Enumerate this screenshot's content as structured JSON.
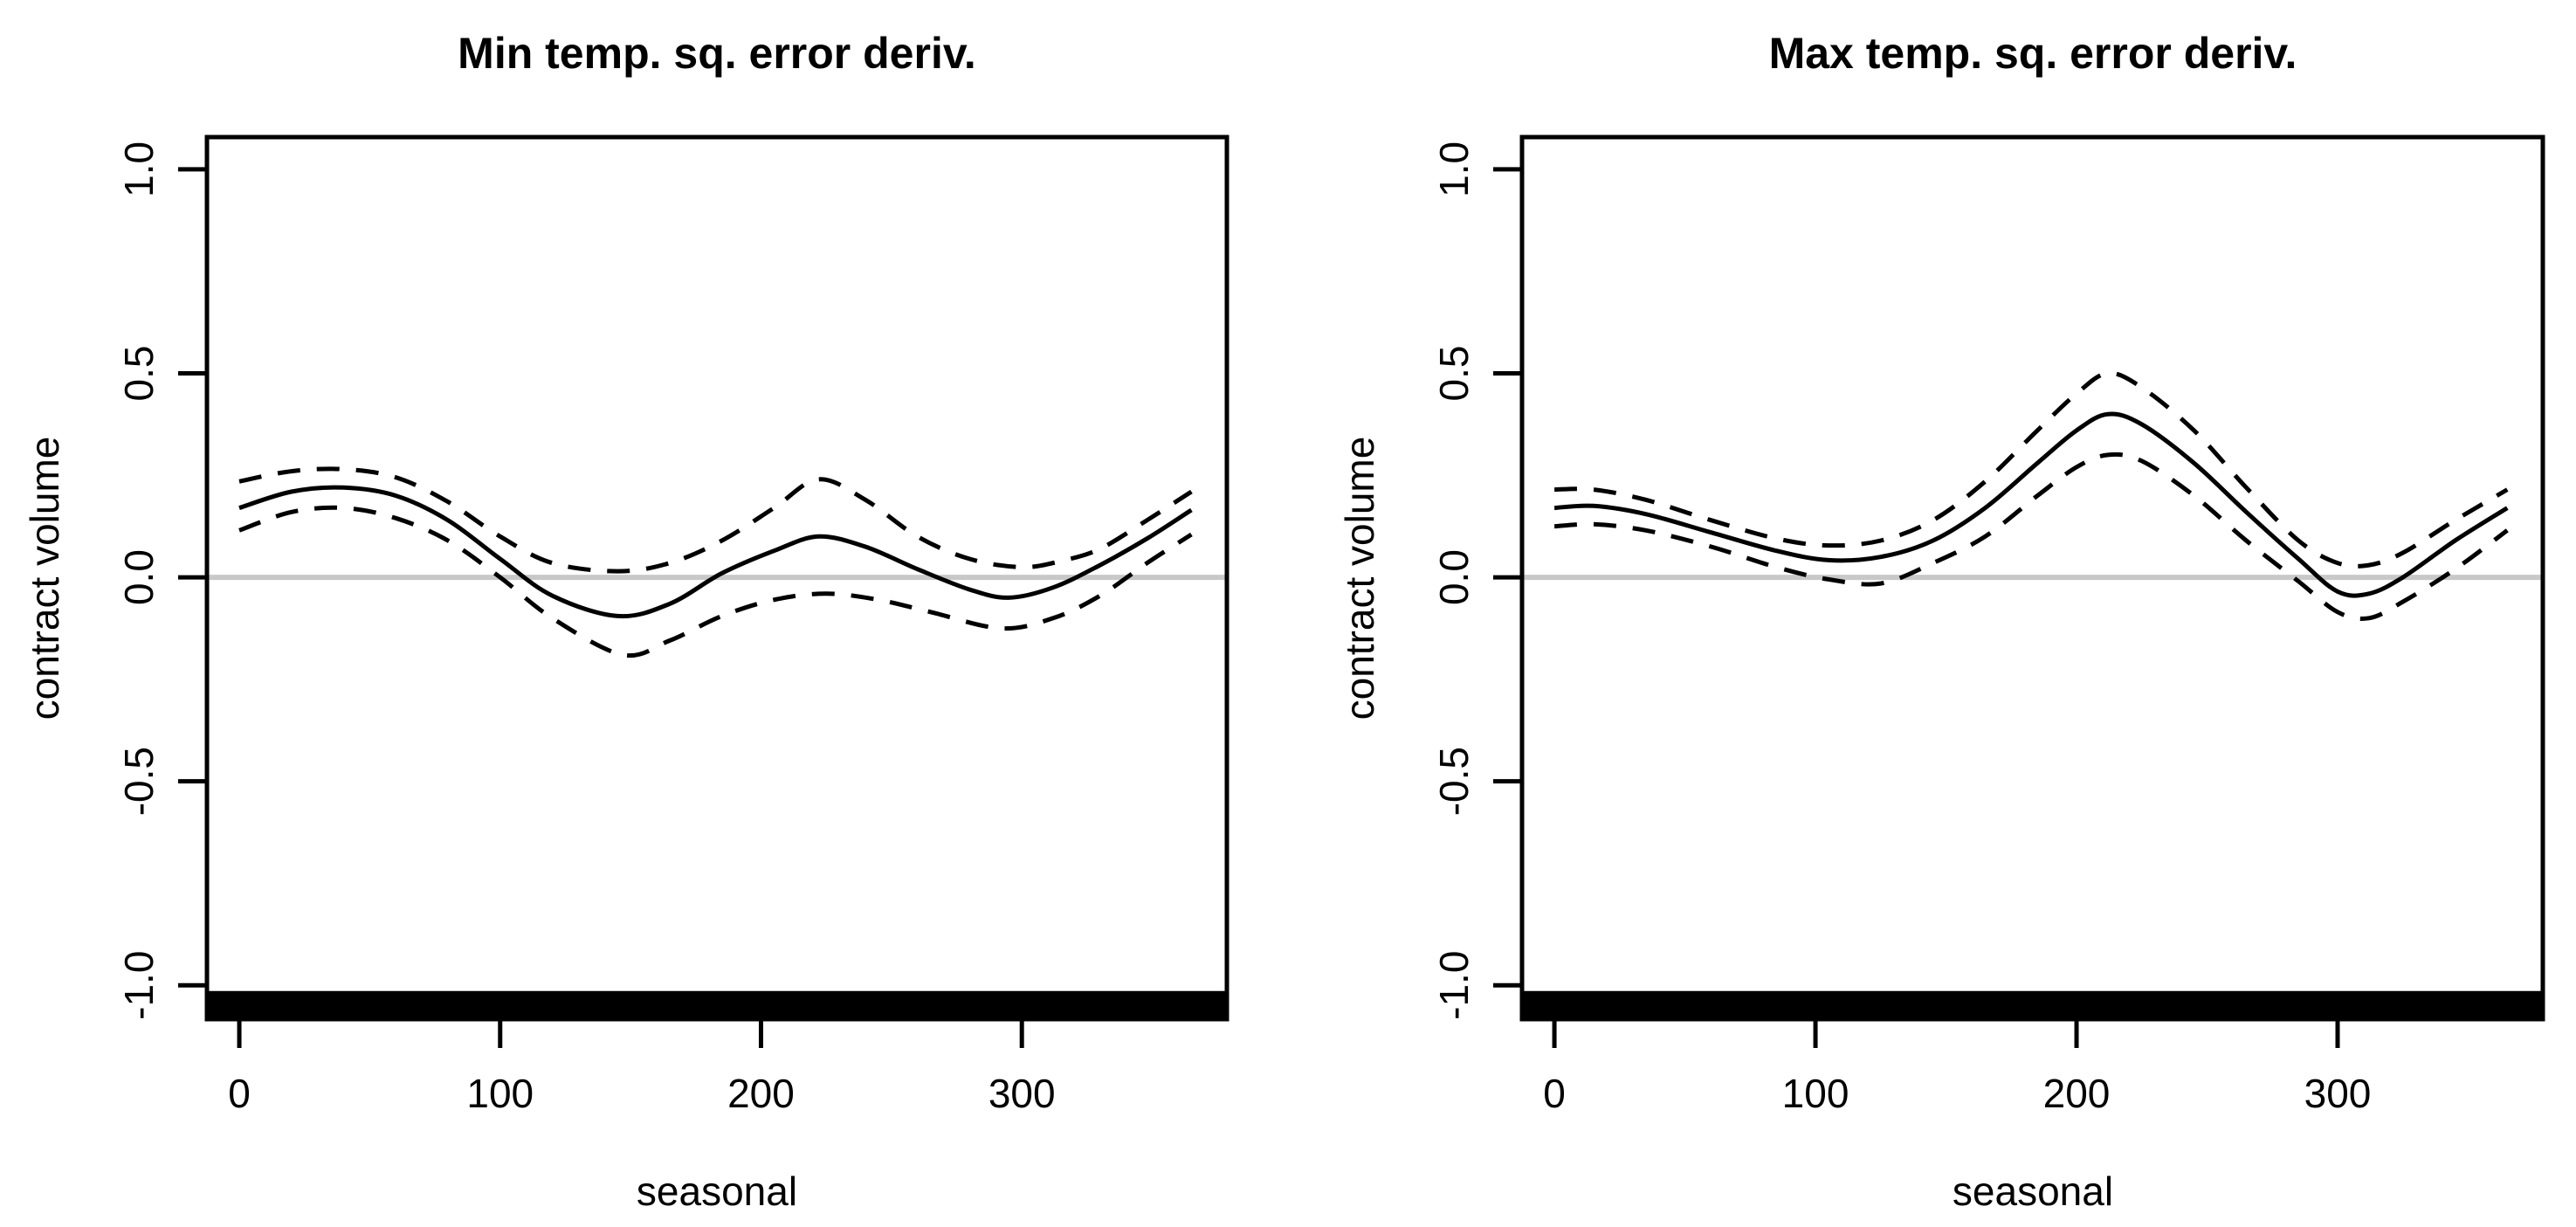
{
  "figure": {
    "background": "#ffffff",
    "line_color": "#000000",
    "zero_line_color": "#c8c8c8",
    "axis_color": "#000000",
    "rug_color": "#000000"
  },
  "chart_data": [
    {
      "type": "line",
      "title": "Min temp. sq. error deriv.",
      "xlabel": "seasonal",
      "ylabel": "contract volume",
      "xlim": [
        -12.4,
        378.6
      ],
      "ylim": [
        -1.083,
        1.079
      ],
      "x_ticks": [
        0,
        100,
        200,
        300
      ],
      "x_tick_labels": [
        "0",
        "100",
        "200",
        "300"
      ],
      "y_ticks": [
        -1.0,
        -0.5,
        0.0,
        0.5,
        1.0
      ],
      "y_tick_labels": [
        "-1.0",
        "-0.5",
        "0.0",
        "0.5",
        "1.0"
      ],
      "grid": false,
      "legend": "none",
      "zero_line_y": 0.0,
      "rug": {
        "present": true,
        "y_top": -1.014,
        "y_bottom": -1.083,
        "dense_full_width": true
      },
      "series": [
        {
          "name": "estimate",
          "style": "solid",
          "points": [
            [
              0,
              0.17
            ],
            [
              20,
              0.21
            ],
            [
              40,
              0.22
            ],
            [
              60,
              0.2
            ],
            [
              80,
              0.14
            ],
            [
              100,
              0.045
            ],
            [
              120,
              -0.045
            ],
            [
              145,
              -0.095
            ],
            [
              165,
              -0.065
            ],
            [
              185,
              0.01
            ],
            [
              205,
              0.065
            ],
            [
              222,
              0.1
            ],
            [
              240,
              0.075
            ],
            [
              260,
              0.02
            ],
            [
              280,
              -0.03
            ],
            [
              295,
              -0.05
            ],
            [
              312,
              -0.025
            ],
            [
              330,
              0.03
            ],
            [
              348,
              0.095
            ],
            [
              365,
              0.165
            ]
          ]
        },
        {
          "name": "upper-ci",
          "style": "dashed",
          "points": [
            [
              0,
              0.235
            ],
            [
              20,
              0.26
            ],
            [
              40,
              0.265
            ],
            [
              60,
              0.245
            ],
            [
              80,
              0.185
            ],
            [
              100,
              0.1
            ],
            [
              120,
              0.035
            ],
            [
              145,
              0.015
            ],
            [
              165,
              0.035
            ],
            [
              185,
              0.09
            ],
            [
              205,
              0.17
            ],
            [
              222,
              0.24
            ],
            [
              240,
              0.19
            ],
            [
              260,
              0.1
            ],
            [
              280,
              0.045
            ],
            [
              300,
              0.025
            ],
            [
              315,
              0.04
            ],
            [
              330,
              0.07
            ],
            [
              348,
              0.14
            ],
            [
              365,
              0.21
            ]
          ]
        },
        {
          "name": "lower-ci",
          "style": "dashed",
          "points": [
            [
              0,
              0.115
            ],
            [
              20,
              0.16
            ],
            [
              40,
              0.17
            ],
            [
              60,
              0.145
            ],
            [
              80,
              0.09
            ],
            [
              100,
              0.0
            ],
            [
              120,
              -0.1
            ],
            [
              147,
              -0.19
            ],
            [
              165,
              -0.155
            ],
            [
              185,
              -0.095
            ],
            [
              205,
              -0.055
            ],
            [
              225,
              -0.04
            ],
            [
              245,
              -0.055
            ],
            [
              265,
              -0.085
            ],
            [
              292,
              -0.125
            ],
            [
              312,
              -0.1
            ],
            [
              330,
              -0.045
            ],
            [
              348,
              0.035
            ],
            [
              365,
              0.105
            ]
          ]
        }
      ]
    },
    {
      "type": "line",
      "title": "Max temp. sq. error deriv.",
      "xlabel": "seasonal",
      "ylabel": "contract volume",
      "xlim": [
        -12.4,
        378.6
      ],
      "ylim": [
        -1.083,
        1.079
      ],
      "x_ticks": [
        0,
        100,
        200,
        300
      ],
      "x_tick_labels": [
        "0",
        "100",
        "200",
        "300"
      ],
      "y_ticks": [
        -1.0,
        -0.5,
        0.0,
        0.5,
        1.0
      ],
      "y_tick_labels": [
        "-1.0",
        "-0.5",
        "0.0",
        "0.5",
        "1.0"
      ],
      "grid": false,
      "legend": "none",
      "zero_line_y": 0.0,
      "rug": {
        "present": true,
        "y_top": -1.014,
        "y_bottom": -1.083,
        "dense_full_width": true
      },
      "series": [
        {
          "name": "estimate",
          "style": "solid",
          "points": [
            [
              0,
              0.17
            ],
            [
              15,
              0.175
            ],
            [
              35,
              0.155
            ],
            [
              60,
              0.11
            ],
            [
              85,
              0.065
            ],
            [
              105,
              0.042
            ],
            [
              125,
              0.05
            ],
            [
              145,
              0.09
            ],
            [
              165,
              0.17
            ],
            [
              185,
              0.28
            ],
            [
              200,
              0.36
            ],
            [
              212,
              0.4
            ],
            [
              225,
              0.375
            ],
            [
              245,
              0.28
            ],
            [
              265,
              0.16
            ],
            [
              285,
              0.045
            ],
            [
              300,
              -0.035
            ],
            [
              312,
              -0.04
            ],
            [
              325,
              0.0
            ],
            [
              345,
              0.09
            ],
            [
              365,
              0.17
            ]
          ]
        },
        {
          "name": "upper-ci",
          "style": "dashed",
          "points": [
            [
              0,
              0.215
            ],
            [
              15,
              0.215
            ],
            [
              35,
              0.19
            ],
            [
              60,
              0.14
            ],
            [
              85,
              0.095
            ],
            [
              105,
              0.078
            ],
            [
              125,
              0.09
            ],
            [
              145,
              0.14
            ],
            [
              165,
              0.235
            ],
            [
              185,
              0.36
            ],
            [
              200,
              0.45
            ],
            [
              212,
              0.5
            ],
            [
              225,
              0.465
            ],
            [
              245,
              0.36
            ],
            [
              265,
              0.22
            ],
            [
              285,
              0.09
            ],
            [
              300,
              0.035
            ],
            [
              312,
              0.03
            ],
            [
              325,
              0.06
            ],
            [
              345,
              0.14
            ],
            [
              365,
              0.215
            ]
          ]
        },
        {
          "name": "lower-ci",
          "style": "dashed",
          "points": [
            [
              0,
              0.125
            ],
            [
              15,
              0.13
            ],
            [
              35,
              0.115
            ],
            [
              60,
              0.075
            ],
            [
              85,
              0.025
            ],
            [
              105,
              -0.005
            ],
            [
              125,
              -0.015
            ],
            [
              145,
              0.035
            ],
            [
              165,
              0.1
            ],
            [
              185,
              0.2
            ],
            [
              200,
              0.27
            ],
            [
              212,
              0.3
            ],
            [
              225,
              0.285
            ],
            [
              245,
              0.2
            ],
            [
              265,
              0.09
            ],
            [
              285,
              -0.01
            ],
            [
              300,
              -0.085
            ],
            [
              312,
              -0.1
            ],
            [
              325,
              -0.06
            ],
            [
              345,
              0.02
            ],
            [
              365,
              0.115
            ]
          ]
        }
      ]
    }
  ]
}
